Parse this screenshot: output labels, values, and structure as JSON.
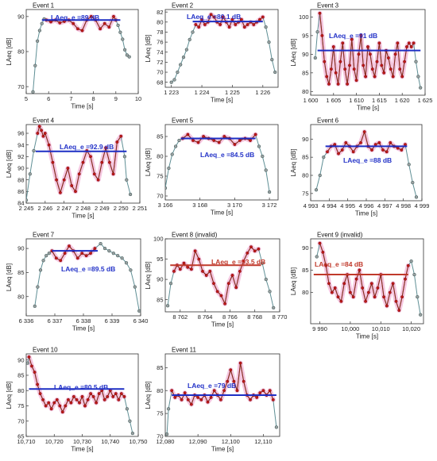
{
  "colors": {
    "mean_blue": "#1d2fc4",
    "mean_invalid": "#c0392b",
    "curve": "#5f8f95",
    "marker_fill": "#9aa0a0",
    "event_marker": "#c01818",
    "event_line": "#8e2b1d",
    "halo": "#f3b8d8",
    "label_blue": "#2433c8",
    "label_red": "#c0392b"
  },
  "chart_data": [
    {
      "type": "line",
      "title": "Event 1",
      "xlabel": "Time [s]",
      "ylabel": "LAeq [dB]",
      "xlim": [
        5,
        10
      ],
      "ylim": [
        68,
        92
      ],
      "xticks": [
        5,
        6,
        7,
        8,
        9,
        10
      ],
      "xtick_labels": [
        "5",
        "6",
        "7",
        "8",
        "9",
        "10"
      ],
      "yticks": [
        70,
        80,
        90
      ],
      "ytick_labels": [
        "70",
        "80",
        "90"
      ],
      "mean_label": "LAeq_e =89 dB",
      "mean_value": 89,
      "mean_range": [
        5.7,
        9.2
      ],
      "event_range": [
        5.9,
        9.0
      ],
      "x": [
        5.3,
        5.4,
        5.5,
        5.6,
        5.7,
        5.8,
        5.9,
        6.1,
        6.3,
        6.5,
        6.7,
        6.9,
        7.1,
        7.3,
        7.5,
        7.7,
        7.9,
        8.1,
        8.3,
        8.5,
        8.7,
        8.9,
        9.0,
        9.1,
        9.2,
        9.3,
        9.4,
        9.5,
        9.6
      ],
      "y": [
        68.5,
        76,
        83,
        86,
        88,
        89.3,
        89,
        88.5,
        89,
        88.2,
        88.6,
        89,
        88,
        86.5,
        86,
        89,
        90,
        89,
        86.5,
        88,
        87,
        90,
        89,
        87.5,
        85.5,
        83.5,
        80.5,
        79,
        78.5
      ]
    },
    {
      "type": "line",
      "title": "Event 2",
      "xlabel": "Time [s]",
      "ylabel": "LAeq [dB]",
      "xlim": [
        1222.8,
        1226.5
      ],
      "ylim": [
        67,
        82.5
      ],
      "xticks": [
        1223,
        1224,
        1225,
        1226
      ],
      "xtick_labels": [
        "1 223",
        "1 224",
        "1 225",
        "1 226"
      ],
      "yticks": [
        68,
        70,
        72,
        74,
        76,
        78,
        80,
        82
      ],
      "ytick_labels": [
        "68",
        "70",
        "72",
        "74",
        "76",
        "78",
        "80",
        "82"
      ],
      "mean_label": "LAeq_e =80.1 dB",
      "mean_value": 80.1,
      "mean_range": [
        1223.7,
        1226.0
      ],
      "event_range": [
        1223.8,
        1226.0
      ],
      "x": [
        1223.0,
        1223.1,
        1223.2,
        1223.3,
        1223.4,
        1223.5,
        1223.6,
        1223.7,
        1223.8,
        1223.9,
        1224.0,
        1224.1,
        1224.2,
        1224.3,
        1224.4,
        1224.5,
        1224.6,
        1224.7,
        1224.8,
        1224.9,
        1225.0,
        1225.1,
        1225.2,
        1225.3,
        1225.4,
        1225.5,
        1225.6,
        1225.7,
        1225.8,
        1225.9,
        1226.0,
        1226.1,
        1226.2,
        1226.3,
        1226.4
      ],
      "y": [
        68,
        68.5,
        70,
        71.5,
        73,
        74.5,
        76.5,
        78,
        79.5,
        79,
        80.5,
        79.5,
        80,
        81.5,
        81,
        80,
        79.5,
        81,
        80,
        79,
        80.5,
        79.5,
        80,
        80.5,
        79,
        79.5,
        80,
        79.5,
        80,
        80.5,
        81,
        79,
        76,
        72.5,
        70
      ]
    },
    {
      "type": "line",
      "title": "Event 3",
      "xlabel": "Time [s]",
      "ylabel": "LAeq [dB]",
      "xlim": [
        1600,
        1625
      ],
      "ylim": [
        79,
        102
      ],
      "xticks": [
        1600,
        1605,
        1610,
        1615,
        1620,
        1625
      ],
      "xtick_labels": [
        "1 600",
        "1 605",
        "1 610",
        "1 615",
        "1 620",
        "1 625"
      ],
      "yticks": [
        80,
        85,
        90,
        95,
        100
      ],
      "ytick_labels": [
        "80",
        "85",
        "90",
        "95",
        "100"
      ],
      "mean_label": "LAeq_e =91 dB",
      "mean_value": 91,
      "mean_range": [
        1601.5,
        1624
      ],
      "event_range": [
        1601.8,
        1622.5
      ],
      "x": [
        1601,
        1601.5,
        1602,
        1602.5,
        1603,
        1603.5,
        1604,
        1604.5,
        1605,
        1605.5,
        1606,
        1606.5,
        1607,
        1607.5,
        1608,
        1608.5,
        1609,
        1609.5,
        1610,
        1610.5,
        1611,
        1611.5,
        1612,
        1612.5,
        1613,
        1613.5,
        1614,
        1614.5,
        1615,
        1615.5,
        1616,
        1616.5,
        1617,
        1617.5,
        1618,
        1618.5,
        1619,
        1619.5,
        1620,
        1620.5,
        1621,
        1621.5,
        1622,
        1622.5,
        1623,
        1623.5,
        1624
      ],
      "y": [
        89,
        96,
        101,
        95,
        88,
        84,
        82,
        86,
        92,
        85,
        82,
        88,
        93,
        86,
        82,
        87,
        94,
        86,
        83,
        90,
        95,
        87,
        84,
        92,
        90,
        86,
        84,
        88,
        93,
        87,
        85,
        91,
        89,
        86,
        84,
        90,
        93,
        86,
        84,
        88,
        92,
        93,
        92,
        93,
        88,
        84,
        81
      ]
    },
    {
      "type": "line",
      "title": "Event 4",
      "xlabel": "Time [s]",
      "ylabel": "LAeq [dB]",
      "xlim": [
        2245,
        2251
      ],
      "ylim": [
        84,
        97.5
      ],
      "xticks": [
        2245,
        2246,
        2247,
        2248,
        2249,
        2250,
        2251
      ],
      "xtick_labels": [
        "2 245",
        "2 246",
        "2 247",
        "2 248",
        "2 249",
        "2 250",
        "2 251"
      ],
      "yticks": [
        84,
        86,
        88,
        90,
        92,
        94,
        96
      ],
      "ytick_labels": [
        "84",
        "86",
        "88",
        "90",
        "92",
        "94",
        "96"
      ],
      "mean_label": "LAeq_e =92.9 dB",
      "mean_value": 92.9,
      "mean_range": [
        2245.5,
        2250.3
      ],
      "event_range": [
        2245.6,
        2250.0
      ],
      "x": [
        2245.0,
        2245.2,
        2245.4,
        2245.6,
        2245.7,
        2245.8,
        2245.9,
        2246.0,
        2246.2,
        2246.4,
        2246.6,
        2246.8,
        2247.0,
        2247.2,
        2247.4,
        2247.6,
        2247.8,
        2248.0,
        2248.2,
        2248.4,
        2248.6,
        2248.8,
        2249.0,
        2249.2,
        2249.4,
        2249.6,
        2249.8,
        2250.0,
        2250.2,
        2250.3,
        2250.5
      ],
      "y": [
        84.5,
        89,
        93,
        96,
        97.2,
        96.5,
        95.5,
        96,
        94,
        91,
        88,
        85.8,
        88,
        90,
        87,
        86,
        89,
        91,
        93,
        92,
        89,
        88,
        91,
        93.5,
        91,
        89,
        94.5,
        95.5,
        92,
        88,
        85.5
      ]
    },
    {
      "type": "line",
      "title": "Event 5",
      "xlabel": "Time [s]",
      "ylabel": "LAeq [dB]",
      "xlim": [
        3166,
        3172.5
      ],
      "ylim": [
        69,
        88
      ],
      "xticks": [
        3166,
        3168,
        3170,
        3172
      ],
      "xtick_labels": [
        "3 166",
        "3 168",
        "3 170",
        "3 172"
      ],
      "yticks": [
        70,
        75,
        80,
        85
      ],
      "ytick_labels": [
        "70",
        "75",
        "80",
        "85"
      ],
      "mean_label": "LAeq_e =84.5 dB",
      "mean_value": 84.5,
      "mean_range": [
        3166.9,
        3171.2
      ],
      "event_range": [
        3167.0,
        3171.2
      ],
      "x": [
        3166.0,
        3166.2,
        3166.4,
        3166.6,
        3166.8,
        3167.0,
        3167.3,
        3167.6,
        3167.9,
        3168.2,
        3168.5,
        3168.8,
        3169.1,
        3169.4,
        3169.7,
        3170.0,
        3170.3,
        3170.6,
        3170.9,
        3171.2,
        3171.4,
        3171.6,
        3171.8,
        3172.0
      ],
      "y": [
        72,
        77,
        80.5,
        82.5,
        84,
        84.5,
        85.5,
        84,
        83.5,
        85,
        84.5,
        84,
        83.5,
        85,
        84.5,
        83,
        84,
        84.5,
        84,
        85.5,
        82.5,
        80,
        76.5,
        71
      ]
    },
    {
      "type": "line",
      "title": "Event 6",
      "xlabel": "Time [s]",
      "ylabel": "LAeq [dB]",
      "xlim": [
        4993,
        4999
      ],
      "ylim": [
        73,
        94
      ],
      "xticks": [
        4993,
        4994,
        4995,
        4996,
        4997,
        4998,
        4999
      ],
      "xtick_labels": [
        "4 993",
        "4 994",
        "4 995",
        "4 996",
        "4 997",
        "4 998",
        "4 999"
      ],
      "yticks": [
        75,
        80,
        85,
        90
      ],
      "ytick_labels": [
        "75",
        "80",
        "85",
        "90"
      ],
      "mean_label": "LAeq_e =88 dB",
      "mean_value": 88,
      "mean_range": [
        4993.8,
        4998.2
      ],
      "event_range": [
        4993.9,
        4998.1
      ],
      "x": [
        4993.3,
        4993.5,
        4993.7,
        4993.9,
        4994.1,
        4994.3,
        4994.5,
        4994.7,
        4994.9,
        4995.1,
        4995.3,
        4995.5,
        4995.7,
        4995.9,
        4996.1,
        4996.3,
        4996.5,
        4996.7,
        4996.9,
        4997.1,
        4997.3,
        4997.5,
        4997.7,
        4997.9,
        4998.1,
        4998.3,
        4998.5,
        4998.7
      ],
      "y": [
        76,
        80,
        85,
        86.5,
        88,
        88.5,
        86,
        87,
        89,
        88,
        86.5,
        88,
        89,
        92,
        88,
        87,
        88.5,
        89,
        87,
        86.5,
        89,
        88,
        87.5,
        87,
        88.5,
        83,
        78,
        74
      ]
    },
    {
      "type": "line",
      "title": "Event 7",
      "xlabel": "Time [s]",
      "ylabel": "LAeq [dB]",
      "xlim": [
        6336,
        6340
      ],
      "ylim": [
        76,
        92
      ],
      "xticks": [
        6336,
        6337,
        6338,
        6339,
        6340
      ],
      "xtick_labels": [
        "6 336",
        "6 337",
        "6 338",
        "6 339",
        "6 340"
      ],
      "yticks": [
        80,
        85,
        90
      ],
      "ytick_labels": [
        "80",
        "85",
        "90"
      ],
      "mean_label": "LAeq_e =89.5 dB",
      "mean_value": 89.5,
      "mean_range": [
        6336.9,
        6338.5
      ],
      "event_range": [
        6336.9,
        6338.4
      ],
      "x": [
        6336.3,
        6336.4,
        6336.5,
        6336.6,
        6336.7,
        6336.8,
        6336.9,
        6337.05,
        6337.2,
        6337.35,
        6337.5,
        6337.65,
        6337.8,
        6337.95,
        6338.1,
        6338.25,
        6338.4,
        6338.6,
        6338.75,
        6338.9,
        6339.05,
        6339.2,
        6339.35,
        6339.5,
        6339.65,
        6339.8,
        6339.95
      ],
      "y": [
        78,
        82,
        85.5,
        87.5,
        88.5,
        89,
        89.5,
        88,
        87.5,
        89,
        90.5,
        89.5,
        88,
        89,
        88.5,
        89,
        90,
        91,
        90,
        89.5,
        89,
        88.5,
        88,
        87,
        85.5,
        82,
        77
      ]
    },
    {
      "type": "line",
      "title": "Event 8 (invalid)",
      "xlabel": "Time [s]",
      "ylabel": "LAeq [dB]",
      "xlim": [
        8760.8,
        8770
      ],
      "ylim": [
        82,
        100
      ],
      "xticks": [
        8762,
        8764,
        8766,
        8768,
        8770
      ],
      "xtick_labels": [
        "8 762",
        "8 764",
        "8 766",
        "8 768",
        "8 770"
      ],
      "yticks": [
        85,
        90,
        95,
        100
      ],
      "ytick_labels": [
        "85",
        "90",
        "95",
        "100"
      ],
      "mean_label": "LAeq_e =93.5 dB",
      "mean_value": 93.5,
      "mean_range": [
        8761.2,
        8768.5
      ],
      "event_range": [
        8761.5,
        8768.3
      ],
      "invalid": true,
      "x": [
        8761.0,
        8761.25,
        8761.5,
        8761.75,
        8762.0,
        8762.3,
        8762.6,
        8762.9,
        8763.2,
        8763.5,
        8763.8,
        8764.1,
        8764.4,
        8764.7,
        8765.0,
        8765.3,
        8765.6,
        8765.9,
        8766.2,
        8766.5,
        8766.8,
        8767.1,
        8767.4,
        8767.7,
        8768.0,
        8768.3,
        8768.6,
        8768.9,
        8769.2,
        8769.5
      ],
      "y": [
        83.5,
        89,
        92,
        93.5,
        92.5,
        94,
        93,
        92.5,
        97,
        95,
        92,
        91,
        92,
        89,
        87,
        86,
        84,
        89,
        91,
        88,
        92,
        94.5,
        96.5,
        98,
        97,
        97.5,
        94,
        90,
        87,
        83
      ]
    },
    {
      "type": "line",
      "title": "Event 9 (invalid)",
      "xlabel": "Time [s]",
      "ylabel": "LAeq [dB]",
      "xlim": [
        9987,
        10024
      ],
      "ylim": [
        73,
        92
      ],
      "xticks": [
        9990,
        10000,
        10010,
        10020
      ],
      "xtick_labels": [
        "9 990",
        "10,000",
        "10,010",
        "10,020"
      ],
      "yticks": [
        80,
        85,
        90
      ],
      "ytick_labels": [
        "80",
        "85",
        "90"
      ],
      "mean_label": "LAeq_e =84 dB",
      "mean_value": 84,
      "mean_range": [
        9988,
        10019
      ],
      "event_range": [
        9990,
        10019
      ],
      "invalid": true,
      "x": [
        9989,
        9990,
        9991,
        9992,
        9993,
        9994,
        9995,
        9996,
        9997,
        9998,
        9999,
        10000,
        10001,
        10002,
        10003,
        10004,
        10005,
        10006,
        10007,
        10008,
        10009,
        10010,
        10011,
        10012,
        10013,
        10014,
        10015,
        10016,
        10017,
        10018,
        10019,
        10020,
        10021,
        10022,
        10023
      ],
      "y": [
        88,
        91,
        89,
        86,
        82,
        80,
        81,
        79,
        78,
        82,
        84,
        80,
        79,
        83,
        85,
        81,
        78,
        80,
        82,
        79,
        81,
        84,
        79,
        77,
        80,
        82,
        78,
        76,
        79,
        83,
        86,
        87,
        84,
        79,
        75
      ]
    },
    {
      "type": "line",
      "title": "Event 10",
      "xlabel": "Time [s]",
      "ylabel": "LAeq [dB]",
      "xlim": [
        10710,
        10750
      ],
      "ylim": [
        65,
        92
      ],
      "xticks": [
        10710,
        10720,
        10730,
        10740,
        10750
      ],
      "xtick_labels": [
        "10,710",
        "10,720",
        "10,730",
        "10,740",
        "10,750"
      ],
      "yticks": [
        65,
        70,
        75,
        80,
        85,
        90
      ],
      "ytick_labels": [
        "65",
        "70",
        "75",
        "80",
        "85",
        "90"
      ],
      "mean_label": "LAeq_e =80.5 dB",
      "mean_value": 80.5,
      "mean_range": [
        10711,
        10745
      ],
      "event_range": [
        10711,
        10745
      ],
      "x": [
        10710.5,
        10711,
        10712,
        10713,
        10714,
        10715,
        10716,
        10717,
        10718,
        10719,
        10720,
        10721,
        10722,
        10723,
        10724,
        10725,
        10726,
        10727,
        10728,
        10729,
        10730,
        10731,
        10732,
        10733,
        10734,
        10735,
        10736,
        10737,
        10738,
        10739,
        10740,
        10741,
        10742,
        10743,
        10744,
        10745,
        10746,
        10747,
        10748
      ],
      "y": [
        89,
        91,
        88,
        86,
        82,
        79,
        77,
        75,
        76,
        74,
        76,
        77,
        75,
        73,
        75,
        77,
        76,
        78,
        77,
        76,
        78,
        75,
        77,
        79,
        78,
        76,
        79,
        80,
        77,
        78,
        80,
        78,
        79,
        77,
        79,
        78,
        74,
        70,
        66
      ]
    },
    {
      "type": "line",
      "title": "Event 11",
      "xlabel": "Time [s]",
      "ylabel": "LAeq [dB]",
      "xlim": [
        12080,
        12115
      ],
      "ylim": [
        70,
        88
      ],
      "xticks": [
        12080,
        12090,
        12100,
        12110
      ],
      "xtick_labels": [
        "12,080",
        "12,090",
        "12,100",
        "12,110"
      ],
      "yticks": [
        70,
        75,
        80,
        85
      ],
      "ytick_labels": [
        "70",
        "75",
        "80",
        "85"
      ],
      "mean_label": "LAeq_e =79 dB",
      "mean_value": 79,
      "mean_range": [
        12082,
        12114
      ],
      "event_range": [
        12082,
        12113
      ],
      "x": [
        12080.5,
        12081,
        12082,
        12083,
        12084,
        12085,
        12086,
        12087,
        12088,
        12089,
        12090,
        12091,
        12092,
        12093,
        12094,
        12095,
        12096,
        12097,
        12098,
        12099,
        12100,
        12101,
        12102,
        12103,
        12104,
        12105,
        12106,
        12107,
        12108,
        12109,
        12110,
        12111,
        12112,
        12113,
        12114
      ],
      "y": [
        70.5,
        76,
        80,
        78.5,
        79,
        78,
        79.5,
        78,
        77,
        79,
        78.5,
        78,
        79,
        77.5,
        78.5,
        80,
        79,
        78,
        80,
        82,
        84.5,
        82,
        80,
        86,
        82,
        79,
        78,
        79,
        78.5,
        79.5,
        80,
        79,
        80,
        78,
        72
      ]
    }
  ]
}
